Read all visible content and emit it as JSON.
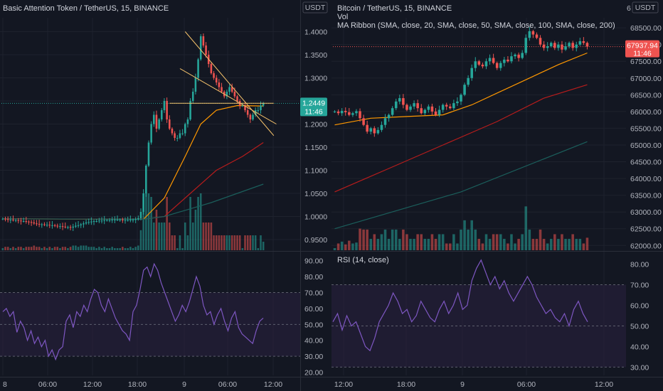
{
  "colors": {
    "background": "#131722",
    "bull": "#26a69a",
    "bear": "#ef5350",
    "sma20": "#ff9800",
    "sma50": "#b71c1c",
    "sma100": "#1b5e5b",
    "rsi": "#7e57c2",
    "rsi_band": "#2a2140",
    "trendline": "#f5c26b",
    "badge_left": "#26a69a",
    "badge_right": "#ef5350"
  },
  "left": {
    "title": "Basic Attention Token / TetherUS, 15, BINANCE",
    "currency": "USDT",
    "price_badge": "1.2449",
    "countdown": "11:46",
    "rsi_label": "",
    "time_ticks": [
      "8",
      "06:00",
      "12:00",
      "18:00",
      "9",
      "06:00",
      "12:00"
    ]
  },
  "right": {
    "title": "Bitcoin / TetherUS, 15, BINANCE",
    "vol_label": "Vol",
    "ribbon_label": "MA Ribbon (SMA, close, 20, SMA, close, 50, SMA, close, 100, SMA, close, 200)",
    "currency": "USDT",
    "price_badge": "67937.94",
    "countdown": "11:46",
    "rsi_label": "RSI (14, close)",
    "time_ticks": [
      "12:00",
      "18:00",
      "9",
      "06:00",
      "12:00"
    ],
    "clipped_char": "6"
  },
  "chart_data": [
    {
      "type": "candlestick",
      "title": "Basic Attention Token / TetherUS, 15, BINANCE",
      "y_ticks": [
        "1.4000",
        "1.3500",
        "1.3000",
        "1.2500",
        "1.2000",
        "1.1500",
        "1.1000",
        "1.0500",
        "1.0000",
        "0.9500"
      ],
      "ylim": [
        0.93,
        1.43
      ],
      "last_price": 1.2449,
      "x_ticks": [
        "8",
        "06:00",
        "12:00",
        "18:00",
        "9",
        "06:00",
        "12:00"
      ],
      "close_series": [
        0.995,
        0.994,
        0.993,
        0.993,
        0.992,
        0.992,
        0.991,
        0.99,
        0.99,
        0.989,
        0.988,
        0.987,
        0.985,
        0.984,
        0.983,
        0.983,
        0.982,
        0.982,
        0.981,
        0.981,
        0.98,
        0.979,
        0.979,
        0.978,
        0.977,
        0.977,
        0.976,
        0.978,
        0.98,
        0.981,
        0.983,
        0.985,
        0.987,
        0.988,
        0.989,
        0.99,
        0.99,
        0.991,
        0.991,
        0.992,
        0.992,
        0.992,
        0.993,
        0.993,
        0.993,
        0.993,
        0.992,
        0.992,
        0.992,
        0.993,
        0.993,
        0.994,
        0.996,
        1.01,
        1.05,
        1.11,
        1.16,
        1.2,
        1.22,
        1.19,
        1.21,
        1.23,
        1.25,
        1.21,
        1.19,
        1.18,
        1.17,
        1.17,
        1.18,
        1.18,
        1.2,
        1.21,
        1.25,
        1.27,
        1.3,
        1.34,
        1.39,
        1.37,
        1.35,
        1.33,
        1.31,
        1.3,
        1.29,
        1.28,
        1.27,
        1.26,
        1.27,
        1.28,
        1.27,
        1.26,
        1.25,
        1.24,
        1.24,
        1.23,
        1.22,
        1.21,
        1.22,
        1.23,
        1.23,
        1.24,
        1.245
      ],
      "ma_series": [
        {
          "name": "",
          "color_key": "sma20",
          "points": [
            [
              0,
              0.995
            ],
            [
              54,
              0.994
            ],
            [
              62,
              1.04
            ],
            [
              70,
              1.13
            ],
            [
              76,
              1.2
            ],
            [
              82,
              1.23
            ],
            [
              90,
              1.24
            ],
            [
              100,
              1.239
            ]
          ]
        },
        {
          "name": "",
          "color_key": "sma50",
          "points": [
            [
              0,
              0.995
            ],
            [
              54,
              0.994
            ],
            [
              62,
              1.0
            ],
            [
              72,
              1.05
            ],
            [
              82,
              1.1
            ],
            [
              92,
              1.13
            ],
            [
              100,
              1.16
            ]
          ]
        },
        {
          "name": "",
          "color_key": "sma100",
          "points": [
            [
              0,
              0.995
            ],
            [
              54,
              0.994
            ],
            [
              62,
              1.0
            ],
            [
              80,
              1.03
            ],
            [
              100,
              1.07
            ]
          ]
        }
      ],
      "trendlines": [
        {
          "from": [
            70,
            1.4
          ],
          "to": [
            104,
            1.175
          ]
        },
        {
          "from": [
            68,
            1.32
          ],
          "to": [
            105,
            1.2
          ]
        },
        {
          "from": [
            64,
            1.245
          ],
          "to": [
            104,
            1.245
          ]
        }
      ],
      "rsi": {
        "y_ticks": [
          "90.00",
          "80.00",
          "70.00",
          "60.00",
          "50.00",
          "40.00",
          "30.00",
          "20.00"
        ],
        "ylim": [
          18,
          93
        ],
        "band": [
          30,
          70
        ],
        "midline": 50,
        "values": [
          58,
          60,
          55,
          58,
          45,
          52,
          48,
          40,
          46,
          38,
          42,
          36,
          40,
          30,
          34,
          28,
          34,
          36,
          52,
          56,
          48,
          58,
          55,
          62,
          58,
          66,
          72,
          70,
          62,
          58,
          66,
          60,
          54,
          50,
          46,
          44,
          40,
          58,
          62,
          72,
          84,
          86,
          80,
          88,
          84,
          76,
          70,
          64,
          58,
          52,
          56,
          62,
          58,
          64,
          72,
          80,
          74,
          62,
          56,
          58,
          50,
          56,
          60,
          52,
          46,
          54,
          58,
          48,
          44,
          42,
          40,
          38,
          46,
          52,
          54
        ]
      }
    },
    {
      "type": "candlestick",
      "title": "Bitcoin / TetherUS, 15, BINANCE",
      "y_ticks": [
        "68500.00",
        "68000.00",
        "67500.00",
        "67000.00",
        "66500.00",
        "66000.00",
        "65500.00",
        "65000.00",
        "64500.00",
        "64000.00",
        "63500.00",
        "63000.00",
        "62500.00",
        "62000.00"
      ],
      "ylim": [
        61900,
        68800
      ],
      "last_price": 67937.94,
      "x_ticks": [
        "12:00",
        "18:00",
        "9",
        "06:00",
        "12:00"
      ],
      "close_series": [
        66000,
        65950,
        66020,
        65980,
        65900,
        65950,
        66010,
        65800,
        65600,
        65400,
        65500,
        65350,
        65450,
        65600,
        65800,
        65900,
        66100,
        66300,
        66400,
        66200,
        66050,
        66150,
        66250,
        66100,
        65950,
        66050,
        66150,
        66000,
        65900,
        66050,
        66200,
        66150,
        66100,
        66250,
        66300,
        66500,
        66800,
        67000,
        67300,
        67500,
        67400,
        67350,
        67500,
        67600,
        67450,
        67300,
        67450,
        67550,
        67500,
        67650,
        67700,
        67600,
        67750,
        68200,
        68400,
        68300,
        68200,
        68000,
        67900,
        67950,
        68050,
        67900,
        68000,
        67850,
        67950,
        68050,
        67900,
        68000,
        68100,
        68050,
        67937.94
      ],
      "ma_series": [
        {
          "name": "",
          "color_key": "sma20",
          "points": [
            [
              0,
              65600
            ],
            [
              10,
              65800
            ],
            [
              20,
              65850
            ],
            [
              30,
              65900
            ],
            [
              38,
              66200
            ],
            [
              46,
              66600
            ],
            [
              54,
              67000
            ],
            [
              62,
              67400
            ],
            [
              70,
              67750
            ]
          ]
        },
        {
          "name": "",
          "color_key": "sma50",
          "points": [
            [
              0,
              63600
            ],
            [
              15,
              64300
            ],
            [
              30,
              65000
            ],
            [
              45,
              65700
            ],
            [
              58,
              66400
            ],
            [
              70,
              66800
            ]
          ]
        },
        {
          "name": "",
          "color_key": "sma100",
          "points": [
            [
              0,
              62500
            ],
            [
              35,
              63600
            ],
            [
              70,
              65100
            ]
          ]
        }
      ],
      "rsi": {
        "y_ticks": [
          "80.00",
          "70.00",
          "60.00",
          "50.00",
          "40.00",
          "30.00"
        ],
        "ylim": [
          26,
          84
        ],
        "band": [
          30,
          70
        ],
        "midline": 50,
        "values": [
          52,
          56,
          48,
          55,
          50,
          52,
          46,
          40,
          38,
          44,
          52,
          56,
          60,
          66,
          62,
          56,
          58,
          52,
          55,
          62,
          58,
          54,
          52,
          58,
          62,
          56,
          60,
          66,
          58,
          60,
          72,
          78,
          82,
          76,
          70,
          74,
          68,
          72,
          66,
          62,
          66,
          70,
          74,
          70,
          64,
          60,
          56,
          58,
          54,
          52,
          56,
          50,
          58,
          62,
          56,
          52
        ]
      }
    }
  ]
}
